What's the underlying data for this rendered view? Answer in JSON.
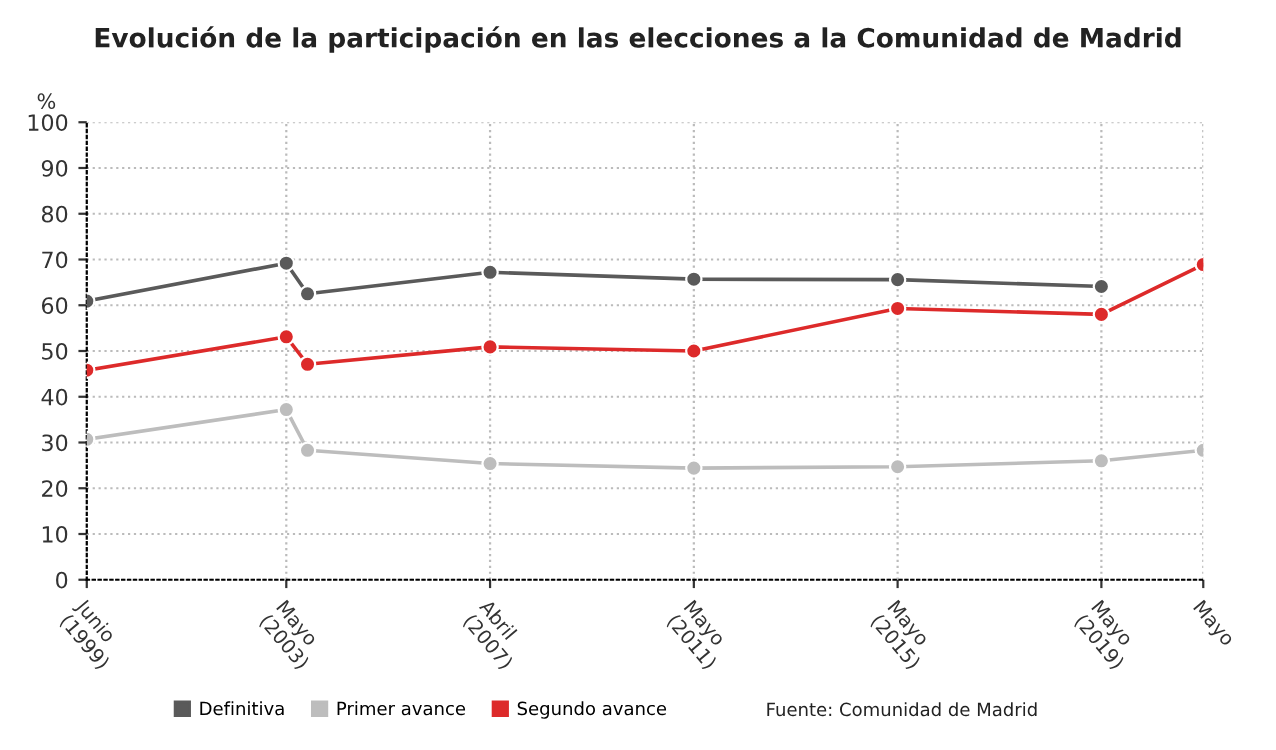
{
  "chart_data": {
    "type": "line",
    "title": "Evolución de la participación en las elecciones a la Comunidad de Madrid",
    "ylabel": "%",
    "x": [
      "1999-06",
      "2003-05",
      "2003-10",
      "2007-05",
      "2011-05",
      "2015-05",
      "2019-05",
      "2021-05"
    ],
    "xticks": [
      {
        "value": "1999-06",
        "label": "Junio\n(1999)"
      },
      {
        "value": "2003-05",
        "label": "Mayo\n(2003)"
      },
      {
        "value": "2007-05",
        "label": "Abril\n(2007)"
      },
      {
        "value": "2011-05",
        "label": "Mayo\n(2011)"
      },
      {
        "value": "2015-05",
        "label": "Mayo\n(2015)"
      },
      {
        "value": "2019-05",
        "label": "Mayo\n(2019)"
      },
      {
        "value": "2021-05",
        "label": "Mayo"
      }
    ],
    "xlim": [
      "1999-06",
      "2021-05"
    ],
    "ylim": [
      0,
      100
    ],
    "yticks": [
      0,
      10,
      20,
      30,
      40,
      50,
      60,
      70,
      80,
      90,
      100
    ],
    "series": [
      {
        "name": "Definitiva",
        "color": "#5a5a5a",
        "values": [
          60.9,
          69.2,
          62.5,
          67.2,
          65.7,
          65.6,
          64.1,
          null
        ]
      },
      {
        "name": "Primer avance",
        "color": "#bdbdbd",
        "values": [
          30.7,
          37.2,
          28.3,
          25.4,
          24.4,
          24.7,
          26.0,
          28.3
        ]
      },
      {
        "name": "Segundo avance",
        "color": "#dd2a2a",
        "values": [
          45.8,
          53.1,
          47.1,
          50.9,
          50.0,
          59.3,
          58.0,
          68.9
        ]
      }
    ],
    "marker": "circle",
    "line_style": "solid",
    "grid": true,
    "legend": "bottom",
    "annotations": [
      "Fuente: Comunidad de Madrid"
    ]
  }
}
